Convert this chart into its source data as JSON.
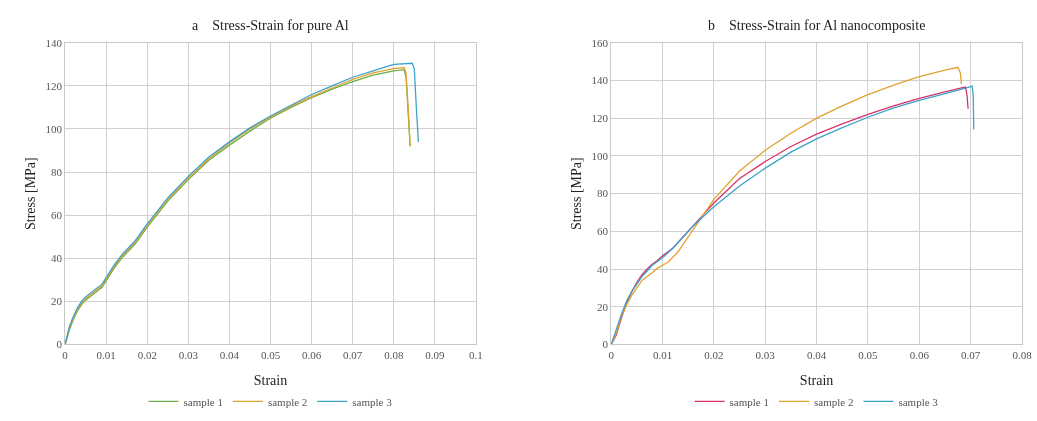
{
  "chart_data": [
    {
      "type": "line",
      "title": "a    Stress-Strain for pure Al",
      "xlabel": "Strain",
      "ylabel": "Stress [MPa]",
      "xlim": [
        0,
        0.1
      ],
      "ylim": [
        0,
        140
      ],
      "xticks": [
        0,
        0.01,
        0.02,
        0.03,
        0.04,
        0.05,
        0.06,
        0.07,
        0.08,
        0.09,
        0.1
      ],
      "yticks": [
        0,
        20,
        40,
        60,
        80,
        100,
        120,
        140
      ],
      "grid": true,
      "legend": "bottom",
      "marker": "none",
      "line_style": "solid",
      "series": [
        {
          "name": "sample 1",
          "color": "#70ad47",
          "x": [
            0,
            0.001,
            0.002,
            0.003,
            0.004,
            0.005,
            0.007,
            0.009,
            0.01,
            0.012,
            0.014,
            0.017,
            0.02,
            0.025,
            0.03,
            0.035,
            0.04,
            0.045,
            0.05,
            0.055,
            0.06,
            0.065,
            0.07,
            0.075,
            0.08,
            0.0825,
            0.083,
            0.0835,
            0.084
          ],
          "values": [
            0,
            6.5,
            11.5,
            15.5,
            18.5,
            20.5,
            23.5,
            26.5,
            29.5,
            35.5,
            40.5,
            46.5,
            54.5,
            66.5,
            76.5,
            85.5,
            92.5,
            99,
            105,
            110,
            114.5,
            118.5,
            122,
            125,
            127,
            127.5,
            124,
            108,
            92
          ]
        },
        {
          "name": "sample 2",
          "color": "#e0a22e",
          "x": [
            0,
            0.001,
            0.002,
            0.003,
            0.004,
            0.005,
            0.007,
            0.009,
            0.01,
            0.012,
            0.014,
            0.017,
            0.02,
            0.025,
            0.03,
            0.035,
            0.04,
            0.045,
            0.05,
            0.055,
            0.06,
            0.065,
            0.07,
            0.075,
            0.08,
            0.0825,
            0.083,
            0.0835,
            0.084
          ],
          "values": [
            0,
            7.2,
            12.2,
            16.2,
            19.2,
            21.2,
            24.2,
            27.2,
            30.2,
            36.2,
            41.2,
            47.2,
            55.2,
            67.2,
            77.2,
            86.2,
            93.5,
            100,
            105.5,
            110.5,
            115,
            119,
            123,
            126,
            128,
            128.5,
            126,
            110,
            92
          ]
        },
        {
          "name": "sample 3",
          "color": "#3ca2c8",
          "x": [
            0,
            0.001,
            0.002,
            0.003,
            0.004,
            0.005,
            0.007,
            0.009,
            0.01,
            0.012,
            0.014,
            0.017,
            0.02,
            0.025,
            0.03,
            0.035,
            0.04,
            0.045,
            0.05,
            0.055,
            0.06,
            0.065,
            0.07,
            0.075,
            0.08,
            0.0845,
            0.085,
            0.0855,
            0.086
          ],
          "values": [
            0,
            8,
            13,
            17,
            20,
            22,
            25,
            28,
            31,
            37,
            42,
            48,
            56,
            68,
            78,
            87,
            94,
            100.5,
            106,
            111,
            116,
            120,
            124,
            127,
            130,
            130.5,
            128,
            110,
            94
          ]
        }
      ]
    },
    {
      "type": "line",
      "title": "b    Stress-Strain for Al nanocomposite",
      "xlabel": "Strain",
      "ylabel": "Stress [MPa]",
      "xlim": [
        0,
        0.08
      ],
      "ylim": [
        0,
        160
      ],
      "xticks": [
        0,
        0.01,
        0.02,
        0.03,
        0.04,
        0.05,
        0.06,
        0.07,
        0.08
      ],
      "yticks": [
        0,
        20,
        40,
        60,
        80,
        100,
        120,
        140,
        160
      ],
      "grid": true,
      "legend": "bottom",
      "marker": "none",
      "line_style": "solid",
      "series": [
        {
          "name": "sample 1",
          "color": "#d6336c",
          "x": [
            0,
            0.001,
            0.002,
            0.003,
            0.004,
            0.005,
            0.006,
            0.007,
            0.008,
            0.009,
            0.01,
            0.012,
            0.014,
            0.016,
            0.018,
            0.02,
            0.025,
            0.03,
            0.035,
            0.04,
            0.045,
            0.05,
            0.055,
            0.06,
            0.065,
            0.068,
            0.069,
            0.0693,
            0.0695
          ],
          "values": [
            0,
            5,
            14,
            22,
            28,
            33,
            37,
            40,
            42.5,
            44.5,
            47,
            51,
            57,
            63,
            69,
            75,
            88,
            97,
            105,
            111.5,
            117,
            122,
            126.5,
            130.5,
            134,
            136,
            136.5,
            132,
            125
          ]
        },
        {
          "name": "sample 2",
          "color": "#e0a22e",
          "x": [
            0,
            0.001,
            0.002,
            0.003,
            0.004,
            0.005,
            0.006,
            0.007,
            0.008,
            0.009,
            0.01,
            0.011,
            0.013,
            0.015,
            0.017,
            0.02,
            0.025,
            0.03,
            0.035,
            0.04,
            0.045,
            0.05,
            0.055,
            0.06,
            0.065,
            0.0675,
            0.068,
            0.0682
          ],
          "values": [
            0,
            6,
            15,
            21,
            26,
            30,
            34,
            36,
            38,
            40.5,
            42,
            43.5,
            49,
            57,
            65,
            77,
            92,
            103,
            112,
            120,
            126.5,
            132.5,
            137.5,
            142,
            145.5,
            147,
            144,
            138
          ]
        },
        {
          "name": "sample 3",
          "color": "#3ca2c8",
          "x": [
            0,
            0.001,
            0.002,
            0.003,
            0.004,
            0.005,
            0.006,
            0.007,
            0.008,
            0.009,
            0.01,
            0.012,
            0.014,
            0.016,
            0.018,
            0.02,
            0.025,
            0.03,
            0.035,
            0.04,
            0.045,
            0.05,
            0.055,
            0.06,
            0.065,
            0.069,
            0.0703,
            0.0705,
            0.0706
          ],
          "values": [
            0,
            8,
            16,
            23,
            28,
            32,
            36,
            39,
            42,
            44,
            46,
            51,
            57,
            63,
            68,
            73,
            84,
            93.5,
            102,
            109,
            115,
            120.5,
            125.5,
            129.5,
            133,
            136,
            137,
            132,
            114
          ]
        }
      ]
    }
  ]
}
